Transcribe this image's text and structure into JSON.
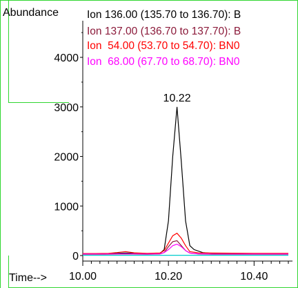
{
  "chart_data": {
    "type": "line",
    "ylabel": "Abundance",
    "xlabel": "Time-->",
    "xlim": [
      10.0,
      10.48
    ],
    "ylim": [
      0,
      4600
    ],
    "x_ticks": [
      "10.00",
      "10.20",
      "10.40"
    ],
    "x_tick_values": [
      10.0,
      10.2,
      10.4
    ],
    "y_ticks": [
      "0",
      "1000",
      "2000",
      "3000",
      "4000"
    ],
    "y_tick_values": [
      0,
      1000,
      2000,
      3000,
      4000
    ],
    "grid": false,
    "legend_position": "top",
    "peak_label": {
      "text": "10.22",
      "x": 10.22,
      "y": 3000
    },
    "series": [
      {
        "name": "Ion 136.00 (135.70 to 136.70): B",
        "color": "#000000",
        "x": [
          10.0,
          10.02,
          10.05,
          10.08,
          10.1,
          10.13,
          10.16,
          10.18,
          10.19,
          10.2,
          10.21,
          10.22,
          10.23,
          10.24,
          10.25,
          10.26,
          10.28,
          10.3,
          10.35,
          10.4,
          10.48
        ],
        "y": [
          30,
          30,
          35,
          45,
          50,
          40,
          35,
          40,
          120,
          700,
          2000,
          3000,
          1900,
          700,
          200,
          120,
          60,
          45,
          35,
          30,
          30
        ]
      },
      {
        "name": "Ion 137.00 (136.70 to 137.70): B",
        "color": "#8b1a3a",
        "x": [
          10.0,
          10.05,
          10.1,
          10.15,
          10.18,
          10.19,
          10.2,
          10.21,
          10.22,
          10.23,
          10.24,
          10.25,
          10.27,
          10.3,
          10.4,
          10.48
        ],
        "y": [
          25,
          25,
          30,
          25,
          30,
          60,
          180,
          280,
          300,
          200,
          100,
          50,
          30,
          25,
          25,
          25
        ]
      },
      {
        "name": "Ion  54.00 (53.70 to 54.70): BN0",
        "color": "#ff0000",
        "x": [
          10.0,
          10.03,
          10.06,
          10.08,
          10.1,
          10.12,
          10.15,
          10.18,
          10.19,
          10.2,
          10.21,
          10.22,
          10.23,
          10.24,
          10.25,
          10.27,
          10.3,
          10.4,
          10.48
        ],
        "y": [
          40,
          40,
          45,
          60,
          80,
          55,
          45,
          50,
          100,
          250,
          400,
          450,
          350,
          200,
          80,
          55,
          50,
          45,
          45
        ]
      },
      {
        "name": "Ion  68.00 (67.70 to 68.70): BN0",
        "color": "#ff00ff",
        "x": [
          10.0,
          10.05,
          10.1,
          10.15,
          10.18,
          10.19,
          10.2,
          10.21,
          10.22,
          10.23,
          10.24,
          10.25,
          10.27,
          10.3,
          10.4,
          10.48
        ],
        "y": [
          30,
          30,
          35,
          30,
          35,
          60,
          120,
          200,
          230,
          180,
          100,
          50,
          35,
          30,
          30,
          30
        ]
      },
      {
        "name": "",
        "color": "#00cccc",
        "x": [
          10.0,
          10.1,
          10.2,
          10.3,
          10.4,
          10.48
        ],
        "y": [
          5,
          5,
          5,
          5,
          5,
          5
        ]
      }
    ]
  }
}
